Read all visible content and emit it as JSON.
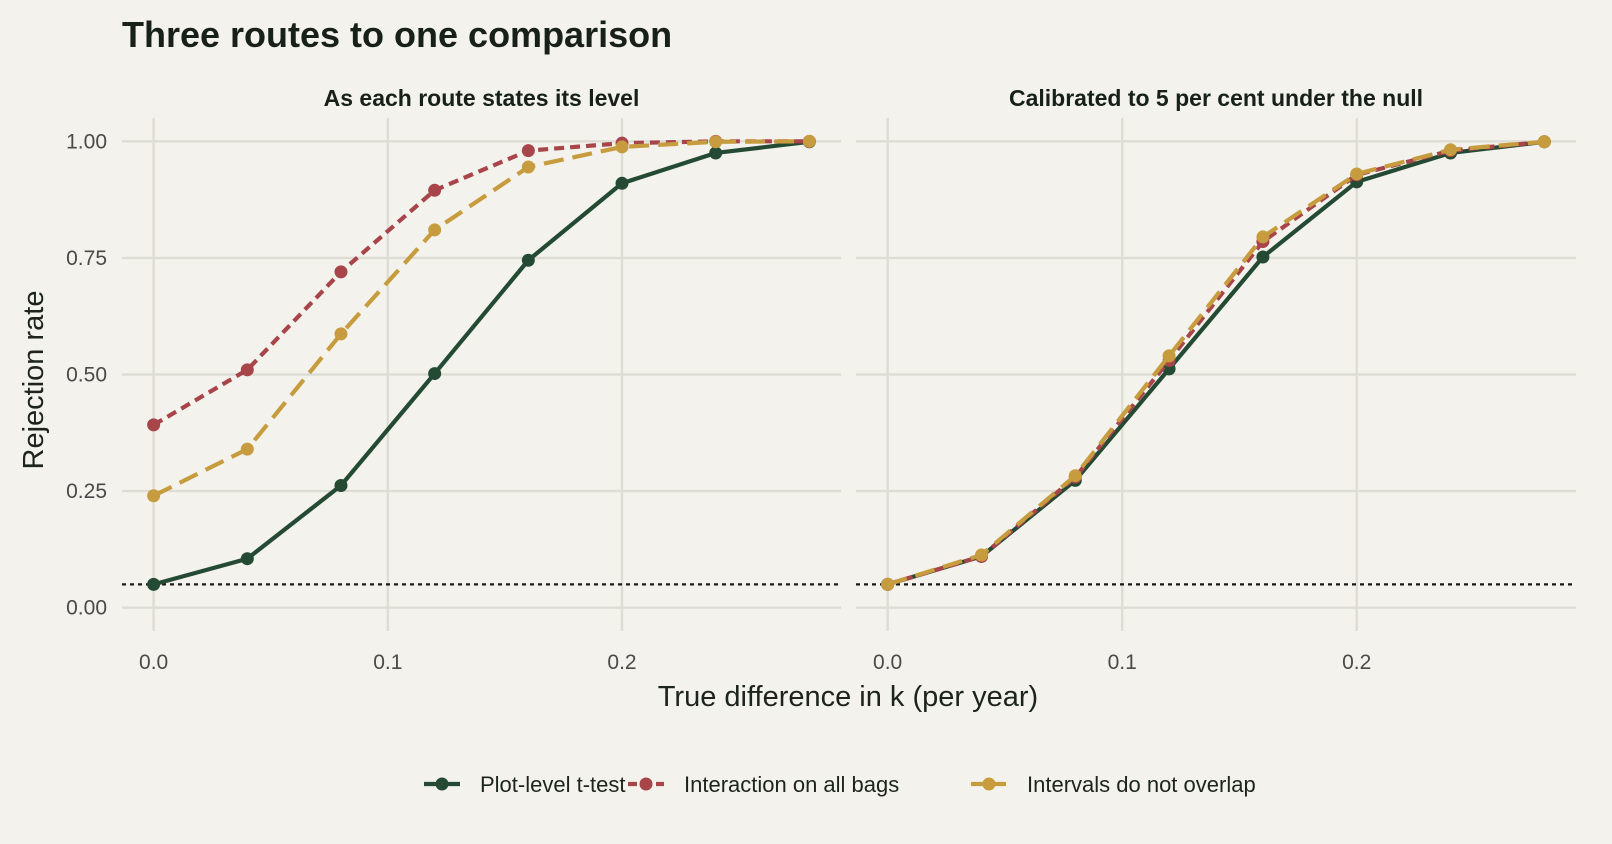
{
  "title": "Three routes to one comparison",
  "colors": {
    "background": "#f3f2ec",
    "grid": "#deddd5",
    "reference_line": "#1a1a1a"
  },
  "chart_data": {
    "type": "line",
    "title": "Three routes to one comparison",
    "xlabel": "True difference in k (per year)",
    "ylabel": "Rejection rate",
    "x": [
      0.0,
      0.04,
      0.08,
      0.12,
      0.16,
      0.2,
      0.24,
      0.28
    ],
    "xlim": [
      -0.0135,
      0.2935
    ],
    "ylim": [
      -0.05,
      1.05
    ],
    "xticks": [
      0.0,
      0.1,
      0.2
    ],
    "xtick_labels": [
      "0.0",
      "0.1",
      "0.2"
    ],
    "yticks": [
      0.0,
      0.25,
      0.5,
      0.75,
      1.0
    ],
    "ytick_labels": [
      "0.00",
      "0.25",
      "0.50",
      "0.75",
      "1.00"
    ],
    "reference_line": {
      "y": 0.05,
      "style": "dotted"
    },
    "grid": true,
    "legend_position": "bottom",
    "series": [
      {
        "name": "Plot-level t-test",
        "color": "#244a34",
        "dash": "solid"
      },
      {
        "name": "Interaction on all bags",
        "color": "#a8454a",
        "dash": "dashed"
      },
      {
        "name": "Intervals do not overlap",
        "color": "#c79c3e",
        "dash": "longdash"
      }
    ],
    "panels": [
      {
        "title": "As each route states its level",
        "values": [
          [
            0.05,
            0.105,
            0.262,
            0.502,
            0.745,
            0.91,
            0.975,
            0.999
          ],
          [
            0.392,
            0.51,
            0.72,
            0.895,
            0.98,
            0.996,
            1.0,
            1.0
          ],
          [
            0.24,
            0.34,
            0.587,
            0.81,
            0.945,
            0.988,
            0.999,
            1.0
          ]
        ]
      },
      {
        "title": "Calibrated to 5 per cent under the null",
        "values": [
          [
            0.05,
            0.11,
            0.273,
            0.512,
            0.752,
            0.913,
            0.975,
            0.999
          ],
          [
            0.05,
            0.11,
            0.28,
            0.53,
            0.785,
            0.928,
            0.98,
            0.999
          ],
          [
            0.05,
            0.113,
            0.283,
            0.54,
            0.795,
            0.93,
            0.982,
            0.999
          ]
        ]
      }
    ]
  }
}
